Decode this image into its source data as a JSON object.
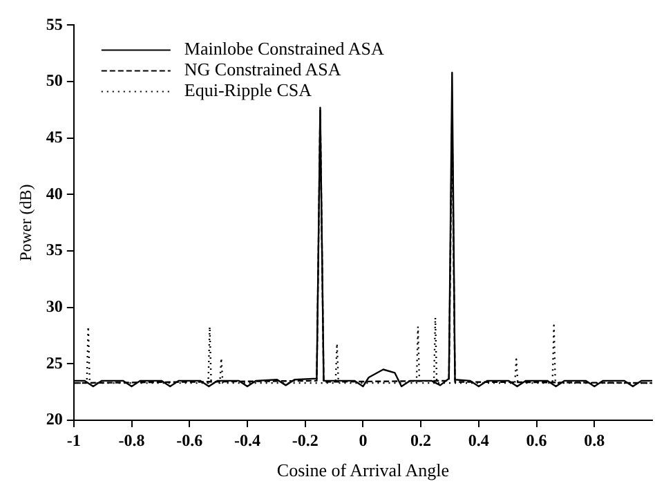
{
  "chart_data": {
    "type": "line",
    "xlabel": "Cosine of Arrival Angle",
    "ylabel": "Power (dB)",
    "xlim": [
      -1,
      1
    ],
    "ylim": [
      20,
      55
    ],
    "xticks": [
      -1,
      -0.8,
      -0.6,
      -0.4,
      -0.2,
      0,
      0.2,
      0.4,
      0.6,
      0.8
    ],
    "yticks": [
      20,
      25,
      30,
      35,
      40,
      45,
      50,
      55
    ],
    "grid": false,
    "legend": "top left",
    "marker": "none",
    "series": [
      {
        "name": "Mainlobe Constrained ASA",
        "color": "#000000",
        "line_style": "solid",
        "x": [
          -1,
          -0.963,
          -0.933,
          -0.903,
          -0.83,
          -0.8,
          -0.77,
          -0.697,
          -0.667,
          -0.637,
          -0.563,
          -0.533,
          -0.503,
          -0.43,
          -0.4,
          -0.37,
          -0.297,
          -0.267,
          -0.237,
          -0.16,
          -0.148,
          -0.136,
          -0.03,
          0,
          0.02,
          0.07,
          0.11,
          0.133,
          0.163,
          0.237,
          0.267,
          0.297,
          0.308,
          0.318,
          0.37,
          0.4,
          0.43,
          0.503,
          0.533,
          0.563,
          0.637,
          0.667,
          0.697,
          0.77,
          0.8,
          0.83,
          0.903,
          0.933,
          0.963,
          1
        ],
        "values": [
          23.5,
          23.5,
          23.0,
          23.5,
          23.5,
          23.0,
          23.5,
          23.5,
          23.0,
          23.5,
          23.5,
          23.0,
          23.5,
          23.5,
          23.0,
          23.5,
          23.6,
          23.1,
          23.6,
          23.7,
          47.7,
          23.5,
          23.5,
          23.0,
          23.8,
          24.5,
          24.2,
          23.0,
          23.5,
          23.5,
          23.1,
          23.7,
          50.8,
          23.6,
          23.5,
          23.0,
          23.5,
          23.5,
          23.0,
          23.5,
          23.5,
          23.0,
          23.5,
          23.5,
          23.0,
          23.5,
          23.5,
          23.0,
          23.5,
          23.5
        ]
      },
      {
        "name": "NG Constrained ASA",
        "color": "#000000",
        "line_style": "dashed",
        "x": [
          -1,
          -0.16,
          -0.148,
          -0.136,
          0.297,
          0.308,
          0.318,
          1
        ],
        "values": [
          23.3,
          23.5,
          47.5,
          23.4,
          23.5,
          47.2,
          23.4,
          23.3
        ]
      },
      {
        "name": "Equi-Ripple CSA",
        "color": "#000000",
        "line_style": "dotted",
        "x": [
          -1,
          -0.955,
          -0.95,
          -0.945,
          -0.535,
          -0.53,
          -0.525,
          -0.495,
          -0.49,
          -0.485,
          -0.095,
          -0.09,
          -0.085,
          0.185,
          0.19,
          0.195,
          0.245,
          0.25,
          0.255,
          0.525,
          0.53,
          0.535,
          0.655,
          0.66,
          0.665,
          1
        ],
        "values": [
          23.3,
          23.3,
          28.3,
          23.3,
          23.3,
          28.3,
          23.3,
          23.3,
          25.5,
          23.3,
          23.3,
          26.8,
          23.3,
          23.3,
          28.3,
          23.3,
          23.3,
          29.1,
          23.3,
          23.3,
          25.4,
          23.3,
          23.3,
          28.4,
          23.3,
          23.3
        ]
      }
    ]
  }
}
